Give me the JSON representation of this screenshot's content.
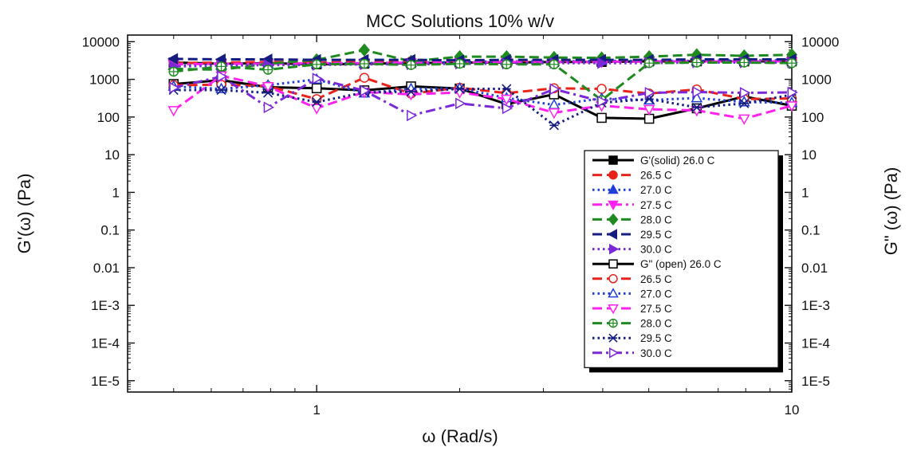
{
  "chart_data": {
    "type": "line",
    "title": "MCC Solutions 10% w/v",
    "xlabel": "ω (Rad/s)",
    "ylabel_left": "G'(ω) (Pa)",
    "ylabel_right": "G\" (ω) (Pa)",
    "x_scale": "log",
    "y_scale": "log",
    "xlim": [
      0.4,
      10
    ],
    "ylim": [
      5e-06,
      15000
    ],
    "x_tick_labels": [
      "1",
      "10"
    ],
    "y_tick_labels": [
      "10000",
      "1000",
      "100",
      "10",
      "1",
      "0.1",
      "0.01",
      "1E-3",
      "1E-4",
      "1E-5"
    ],
    "grid": false,
    "legend_position": "lower-right",
    "x": [
      0.5,
      0.63,
      0.79,
      1.0,
      1.26,
      1.58,
      2.0,
      2.51,
      3.16,
      3.98,
      5.01,
      6.31,
      7.94,
      10.0
    ],
    "series": [
      {
        "name": "G'(solid) 26.0 C",
        "color": "#000000",
        "marker": "square",
        "fill": "filled",
        "dash": "solid",
        "values": [
          2800,
          2600,
          2700,
          2500,
          2600,
          2700,
          2800,
          2800,
          2900,
          2900,
          3000,
          3000,
          3000,
          3000
        ]
      },
      {
        "name": "26.5 C",
        "color": "#e8231c",
        "marker": "circle",
        "fill": "filled",
        "dash": "dash",
        "values": [
          2700,
          2800,
          2900,
          2800,
          2900,
          3000,
          3100,
          3100,
          3100,
          3200,
          3200,
          3200,
          3200,
          3300
        ]
      },
      {
        "name": "27.0 C",
        "color": "#1f3fd6",
        "marker": "triangle-up",
        "fill": "filled",
        "dash": "dot",
        "values": [
          2300,
          2400,
          2500,
          2600,
          2700,
          2800,
          2900,
          3000,
          3000,
          3100,
          3100,
          3100,
          3200,
          3200
        ]
      },
      {
        "name": "27.5 C",
        "color": "#ff22ee",
        "marker": "triangle-down",
        "fill": "filled",
        "dash": "dashdot",
        "values": [
          2500,
          2600,
          2600,
          2700,
          2700,
          2800,
          2800,
          2900,
          2900,
          2900,
          3000,
          3000,
          3000,
          3000
        ]
      },
      {
        "name": "28.0 C",
        "color": "#1f8a1f",
        "marker": "diamond",
        "fill": "filled",
        "dash": "dash",
        "values": [
          1900,
          1800,
          2600,
          3300,
          6000,
          3000,
          4000,
          4000,
          3800,
          3700,
          4000,
          4500,
          4200,
          4500
        ]
      },
      {
        "name": "29.5 C",
        "color": "#151d80",
        "marker": "triangle-left",
        "fill": "filled",
        "dash": "dash",
        "values": [
          3500,
          3400,
          3400,
          3300,
          3300,
          3300,
          3200,
          3300,
          3300,
          3300,
          3300,
          3400,
          3400,
          3400
        ]
      },
      {
        "name": "30.0 C",
        "color": "#7a28d8",
        "marker": "triangle-right",
        "fill": "filled",
        "dash": "dot",
        "values": [
          2200,
          2300,
          2400,
          2400,
          2500,
          2500,
          2600,
          2600,
          2700,
          2700,
          2700,
          2800,
          2800,
          2800
        ]
      },
      {
        "name": "G\" (open) 26.0 C",
        "color": "#000000",
        "marker": "square",
        "fill": "open",
        "dash": "solid",
        "values": [
          750,
          950,
          620,
          580,
          510,
          650,
          570,
          220,
          400,
          95,
          90,
          170,
          350,
          200
        ]
      },
      {
        "name": "26.5 C",
        "color": "#e8231c",
        "marker": "circle",
        "fill": "open",
        "dash": "dash",
        "values": [
          700,
          720,
          660,
          300,
          1100,
          420,
          600,
          430,
          580,
          560,
          420,
          540,
          300,
          310
        ]
      },
      {
        "name": "27.0 C",
        "color": "#1f3fd6",
        "marker": "triangle-up",
        "fill": "open",
        "dash": "dot",
        "values": [
          650,
          560,
          700,
          1000,
          430,
          560,
          580,
          320,
          210,
          310,
          280,
          320,
          250,
          240
        ]
      },
      {
        "name": "27.5 C",
        "color": "#ff22ee",
        "marker": "triangle-down",
        "fill": "open",
        "dash": "dash",
        "values": [
          150,
          1250,
          650,
          170,
          460,
          400,
          450,
          300,
          130,
          200,
          160,
          150,
          90,
          200
        ]
      },
      {
        "name": "28.0 C",
        "color": "#1f8a1f",
        "marker": "circle-plus",
        "fill": "open",
        "dash": "dash",
        "values": [
          1600,
          2200,
          1800,
          2500,
          2600,
          2400,
          2600,
          2500,
          2500,
          280,
          2700,
          2800,
          2800,
          2700
        ]
      },
      {
        "name": "29.5 C",
        "color": "#151d80",
        "marker": "x-cross",
        "fill": "open",
        "dash": "dot",
        "values": [
          520,
          520,
          440,
          250,
          450,
          470,
          560,
          560,
          60,
          240,
          300,
          180,
          230,
          390
        ]
      },
      {
        "name": "30.0 C",
        "color": "#7a28d8",
        "marker": "triangle-right",
        "fill": "open",
        "dash": "dashdot",
        "values": [
          600,
          1200,
          180,
          1050,
          500,
          110,
          230,
          170,
          550,
          260,
          440,
          460,
          440,
          450
        ]
      }
    ]
  }
}
